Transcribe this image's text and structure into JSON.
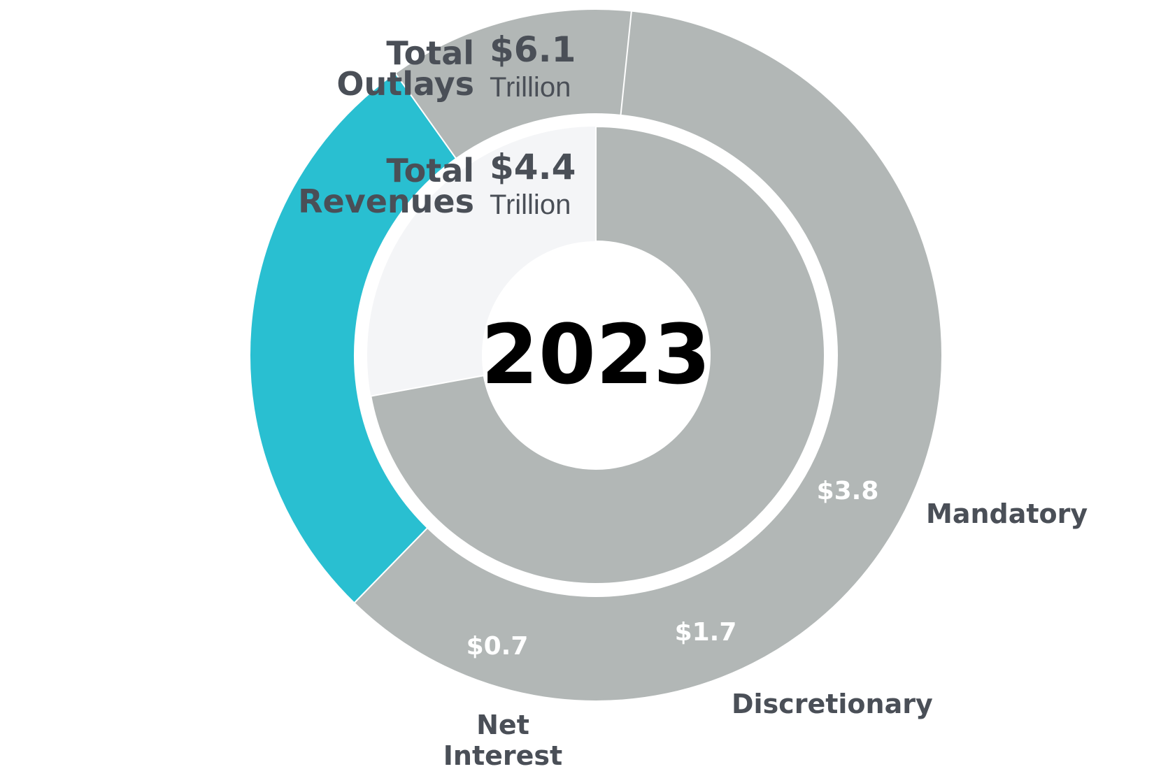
{
  "chart_data": {
    "type": "pie",
    "year": "2023",
    "outer_ring": {
      "title": "Total Outlays",
      "title_lines": [
        "Total",
        "Outlays"
      ],
      "total_label": "$6.1",
      "total_unit": "Trillion",
      "total": 6.1,
      "slices": [
        {
          "name": "Mandatory",
          "value": 3.8,
          "label": "$3.8",
          "color": "#b2b7b6"
        },
        {
          "name": "Discretionary",
          "value": 1.7,
          "label": "$1.7",
          "color": "#29bfd1"
        },
        {
          "name": "Net Interest",
          "name_lines": [
            "Net",
            "Interest"
          ],
          "value": 0.7,
          "label": "$0.7",
          "color": "#b2b7b6"
        }
      ]
    },
    "inner_ring": {
      "title": "Total Revenues",
      "title_lines": [
        "Total",
        "Revenues"
      ],
      "total_label": "$4.4",
      "total_unit": "Trillion",
      "total": 4.4,
      "slices": [
        {
          "name": "Revenues",
          "value": 4.4,
          "color": "#b2b7b6"
        }
      ]
    },
    "colors": {
      "track": "#f4f5f7",
      "separator": "#ffffff",
      "text_dark": "#4a4f57",
      "year_text": "#000000"
    }
  }
}
